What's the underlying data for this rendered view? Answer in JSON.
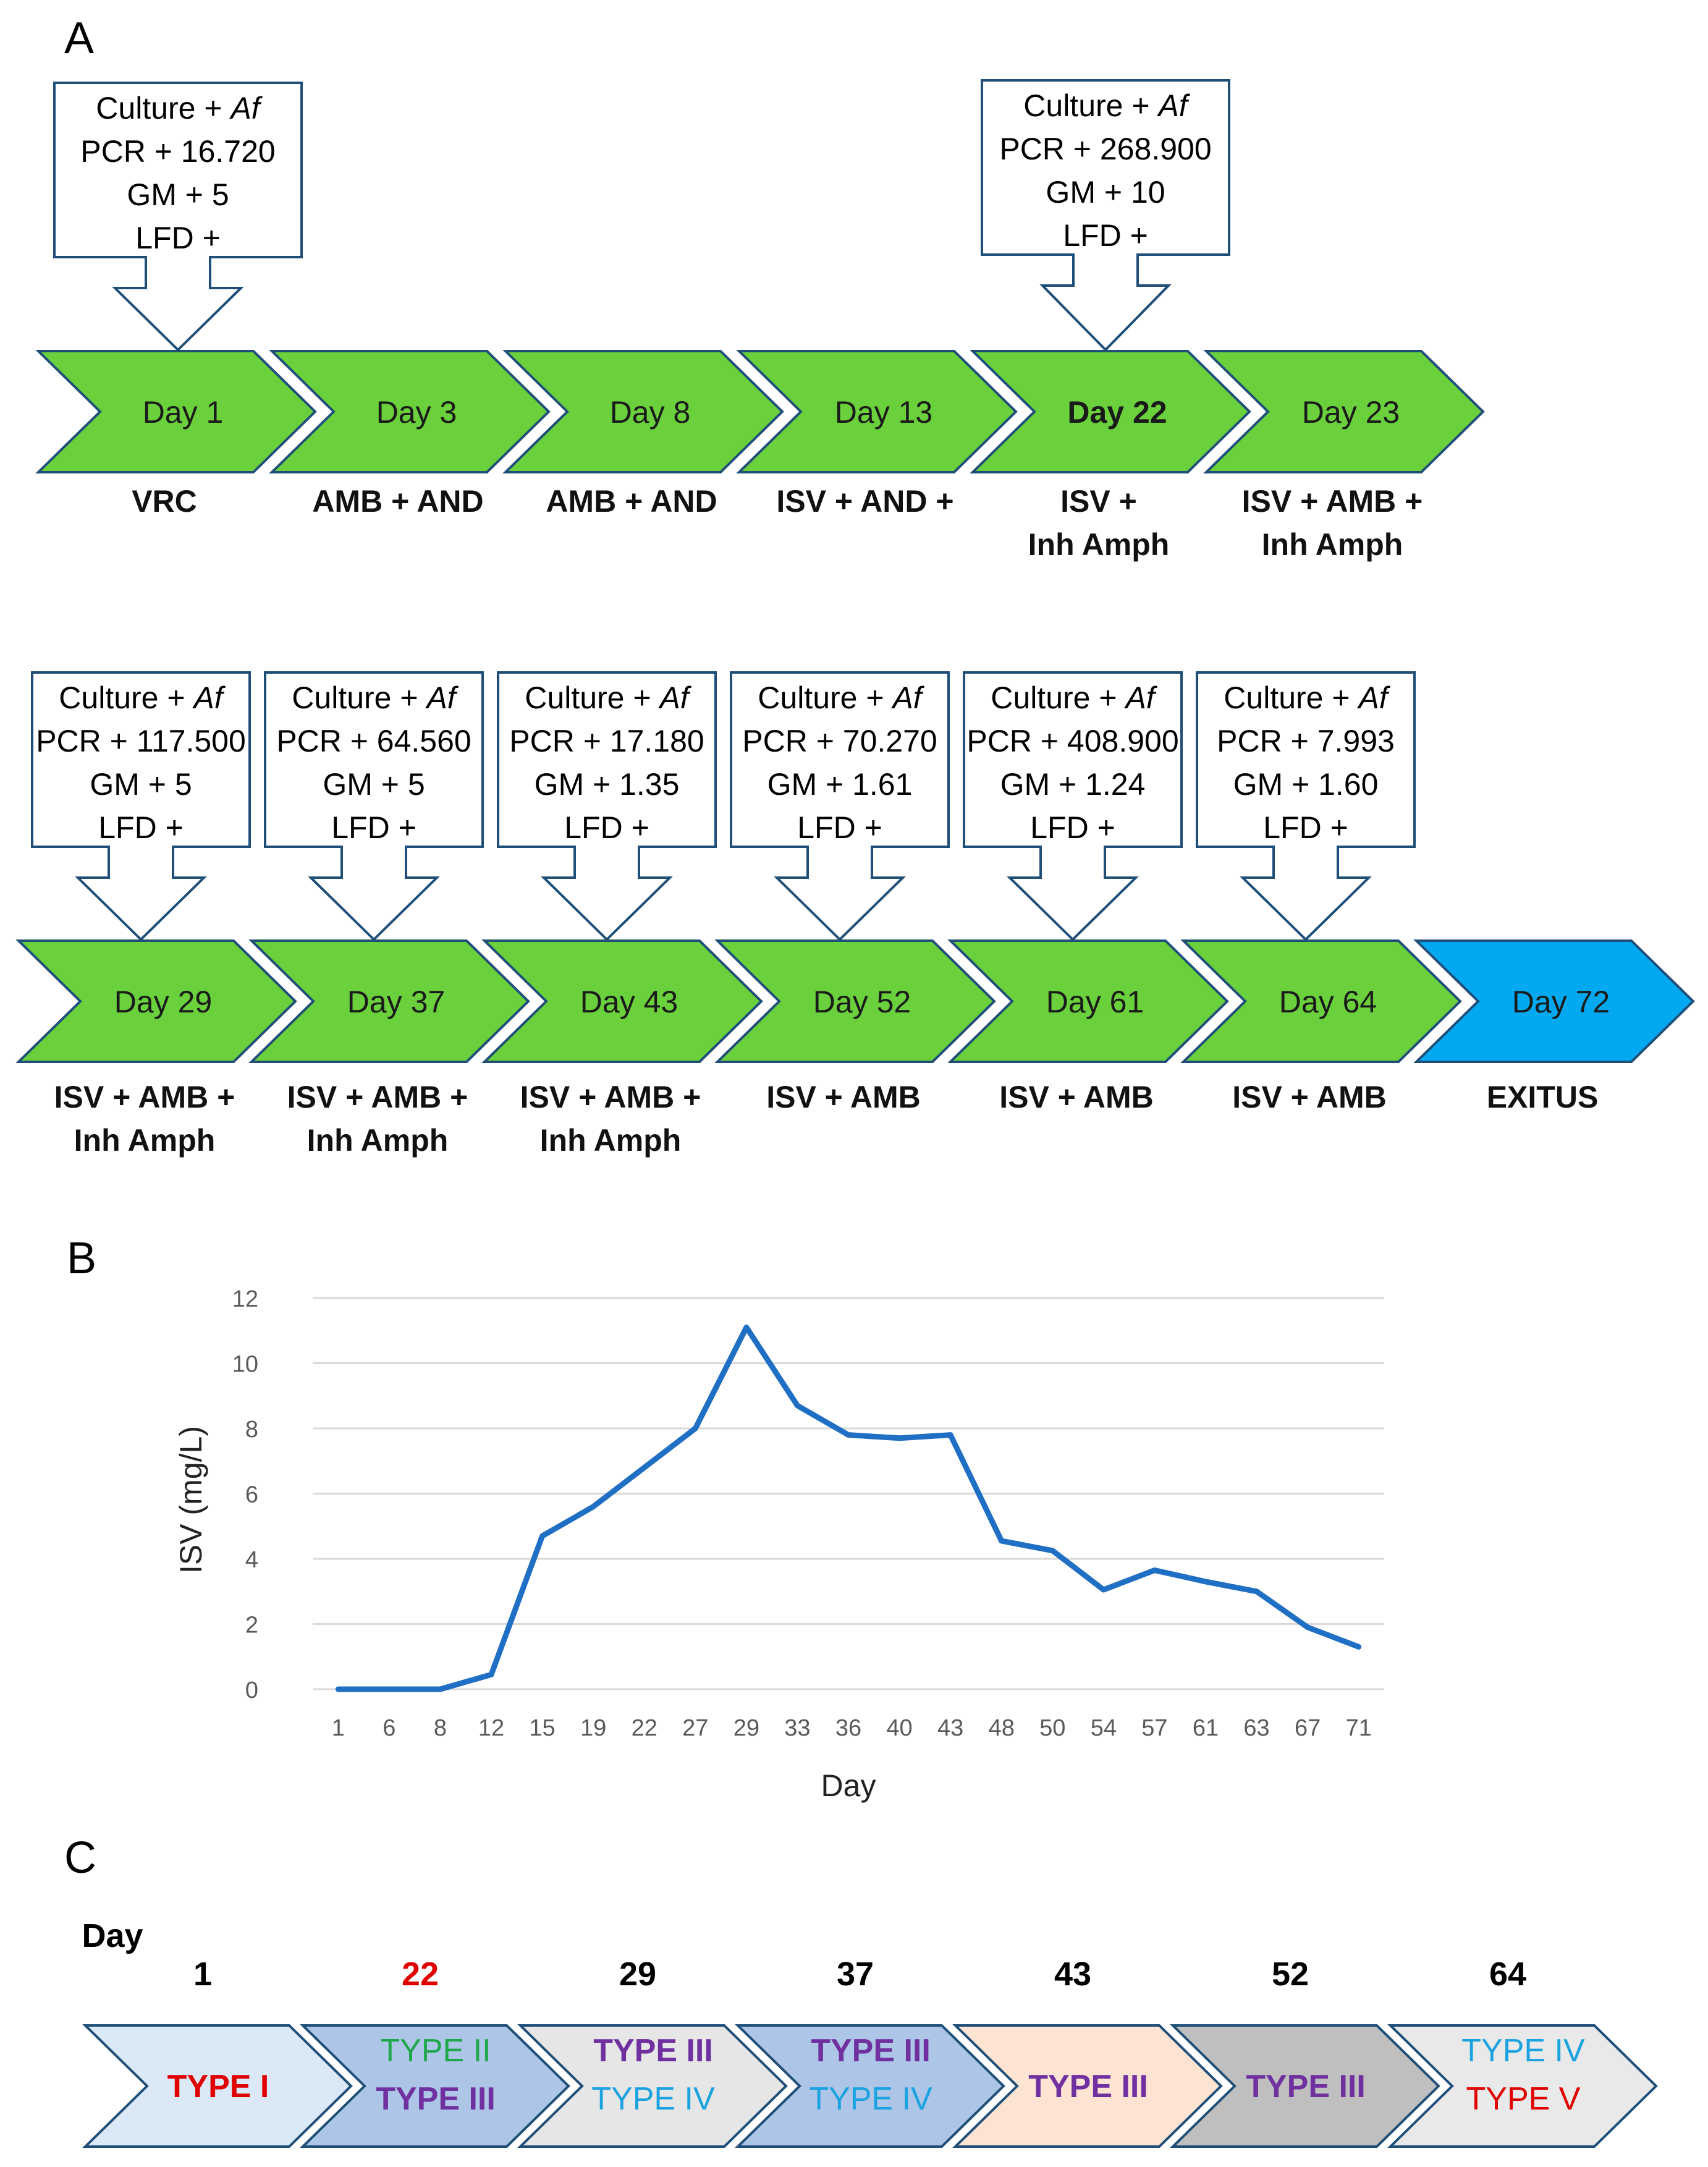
{
  "panels": {
    "a": "A",
    "b": "B",
    "c": "C"
  },
  "timeline_a": {
    "row1": [
      {
        "day": "Day 1",
        "treatment": [
          "VRC"
        ],
        "bold_day": false,
        "result": {
          "culture": "Culture + ",
          "culture_organism": "Af",
          "pcr": "PCR + 16.720",
          "gm": "GM + 5",
          "lfd": "LFD +"
        }
      },
      {
        "day": "Day 3",
        "treatment": [
          "AMB + AND"
        ],
        "bold_day": false
      },
      {
        "day": "Day 8",
        "treatment": [
          "AMB + AND"
        ],
        "bold_day": false
      },
      {
        "day": "Day 13",
        "treatment": [
          "ISV + AND +"
        ],
        "bold_day": false
      },
      {
        "day": "Day 22",
        "treatment": [
          "ISV +",
          "Inh Amph"
        ],
        "bold_day": true,
        "result": {
          "culture": "Culture + ",
          "culture_organism": "Af",
          "pcr": "PCR + 268.900",
          "gm": "GM + 10",
          "lfd": "LFD +"
        }
      },
      {
        "day": "Day 23",
        "treatment": [
          "ISV + AMB +",
          "Inh Amph"
        ],
        "bold_day": false
      }
    ],
    "row2": [
      {
        "day": "Day 29",
        "treatment": [
          "ISV + AMB +",
          "Inh Amph"
        ],
        "result": {
          "culture": "Culture + ",
          "culture_organism": "Af",
          "pcr": "PCR + 117.500",
          "gm": "GM + 5",
          "lfd": "LFD +"
        }
      },
      {
        "day": "Day 37",
        "treatment": [
          "ISV + AMB +",
          "Inh Amph"
        ],
        "result": {
          "culture": "Culture + ",
          "culture_organism": "Af",
          "pcr": "PCR + 64.560",
          "gm": "GM + 5",
          "lfd": "LFD +"
        }
      },
      {
        "day": "Day 43",
        "treatment": [
          "ISV + AMB +",
          "Inh Amph"
        ],
        "result": {
          "culture": "Culture + ",
          "culture_organism": "Af",
          "pcr": "PCR + 17.180",
          "gm": "GM + 1.35",
          "lfd": "LFD +"
        }
      },
      {
        "day": "Day 52",
        "treatment": [
          "ISV + AMB"
        ],
        "result": {
          "culture": "Culture + ",
          "culture_organism": "Af",
          "pcr": "PCR + 70.270",
          "gm": "GM + 1.61",
          "lfd": "LFD +"
        }
      },
      {
        "day": "Day 61",
        "treatment": [
          "ISV + AMB"
        ],
        "result": {
          "culture": "Culture + ",
          "culture_organism": "Af",
          "pcr": "PCR + 408.900",
          "gm": "GM + 1.24",
          "lfd": "LFD +"
        }
      },
      {
        "day": "Day 64",
        "treatment": [
          "ISV + AMB"
        ],
        "result": {
          "culture": "Culture + ",
          "culture_organism": "Af",
          "pcr": "PCR + 7.993",
          "gm": "GM + 1.60",
          "lfd": "LFD +"
        }
      },
      {
        "day": "Day 72",
        "treatment": [
          "EXITUS"
        ],
        "terminal": true
      }
    ]
  },
  "chart_data": {
    "type": "line",
    "title": "",
    "xlabel": "Day",
    "ylabel": "ISV (mg/L)",
    "ylim": [
      0,
      12
    ],
    "yticks": [
      0,
      2,
      4,
      6,
      8,
      10,
      12
    ],
    "grid": true,
    "categories": [
      "1",
      "6",
      "8",
      "12",
      "15",
      "19",
      "22",
      "27",
      "29",
      "33",
      "36",
      "40",
      "43",
      "48",
      "50",
      "54",
      "57",
      "61",
      "63",
      "67",
      "71"
    ],
    "series": [
      {
        "name": "ISV",
        "color": "#1f6fc4",
        "values": [
          0,
          0,
          0,
          0.45,
          4.7,
          5.6,
          6.8,
          8.0,
          11.1,
          8.7,
          7.8,
          7.7,
          7.8,
          4.55,
          4.25,
          3.05,
          3.65,
          3.3,
          3.0,
          1.9,
          1.3
        ]
      }
    ]
  },
  "panel_c": {
    "day_label": "Day",
    "stages": [
      {
        "day": "1",
        "day_color": "#000000",
        "fill": "#dbe9f6",
        "types": [
          {
            "t": "TYPE I",
            "c": "#e00000",
            "bold": true
          }
        ]
      },
      {
        "day": "22",
        "day_color": "#e00000",
        "fill": "#adc5e6",
        "types": [
          {
            "t": "TYPE II",
            "c": "#1fa84a",
            "bold": false
          },
          {
            "t": "TYPE III",
            "c": "#7030a0",
            "bold": true
          }
        ]
      },
      {
        "day": "29",
        "day_color": "#000000",
        "fill": "#e6e6e6",
        "types": [
          {
            "t": "TYPE III",
            "c": "#7030a0",
            "bold": true
          },
          {
            "t": "TYPE IV",
            "c": "#1aa3e0",
            "bold": false
          }
        ]
      },
      {
        "day": "37",
        "day_color": "#000000",
        "fill": "#adc5e6",
        "types": [
          {
            "t": "TYPE III",
            "c": "#7030a0",
            "bold": true
          },
          {
            "t": "TYPE IV",
            "c": "#1aa3e0",
            "bold": false
          }
        ]
      },
      {
        "day": "43",
        "day_color": "#000000",
        "fill": "#fde4d2",
        "types": [
          {
            "t": "TYPE III",
            "c": "#7030a0",
            "bold": true
          }
        ]
      },
      {
        "day": "52",
        "day_color": "#000000",
        "fill": "#bfbfbf",
        "types": [
          {
            "t": "TYPE III",
            "c": "#7030a0",
            "bold": true
          }
        ]
      },
      {
        "day": "64",
        "day_color": "#000000",
        "fill": "#e9e9e9",
        "types": [
          {
            "t": "TYPE IV",
            "c": "#1aa3e0",
            "bold": false
          },
          {
            "t": "TYPE V",
            "c": "#e00000",
            "bold": false
          }
        ]
      }
    ]
  }
}
